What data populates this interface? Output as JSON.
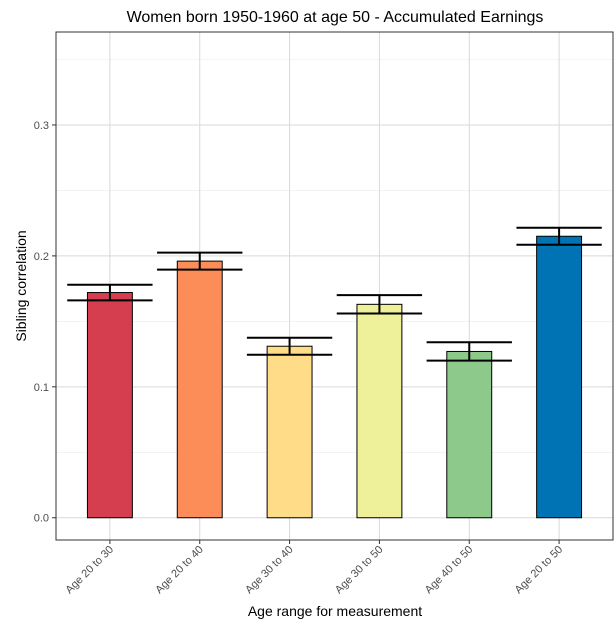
{
  "chart_data": {
    "type": "bar",
    "title": "Women born 1950-1960 at age 50 - Accumulated Earnings",
    "x_label": "Age range for measurement",
    "y_label": "Sibling correlation",
    "categories": [
      "Age 20 to 30",
      "Age 20 to 40",
      "Age 30 to 40",
      "Age 30 to 50",
      "Age 40 to 50",
      "Age 20 to 50"
    ],
    "values": [
      0.172,
      0.196,
      0.131,
      0.163,
      0.127,
      0.215
    ],
    "errors": [
      0.006,
      0.0065,
      0.0065,
      0.007,
      0.007,
      0.0065
    ],
    "colors": [
      "#d53e4f",
      "#fc8d59",
      "#fedc88",
      "#eef09a",
      "#8dc98b",
      "#0073b5"
    ],
    "ylim": [
      -0.017,
      0.371
    ],
    "yticks": [
      {
        "value": 0,
        "label": "0.0"
      },
      0.1,
      0.2,
      0.3
    ],
    "grid": true,
    "minor_grid": true
  }
}
